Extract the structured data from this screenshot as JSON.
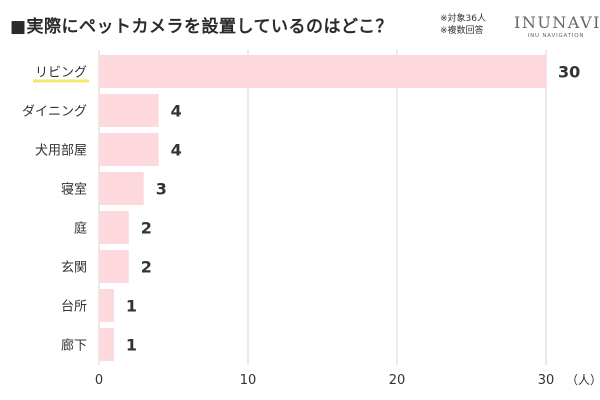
{
  "title": "■実際にペットカメラを設置しているのはどこ？",
  "note": {
    "line1": "※対象36人",
    "line2": "※複数回答"
  },
  "logo": {
    "name": "INUNAVI",
    "tagline": "INU NAVIGATION"
  },
  "colors": {
    "bar": "#fdd9de",
    "grid": "#d6d6d6",
    "highlight_underline": "#f4e96a",
    "text": "#333333"
  },
  "chart_data": {
    "type": "bar",
    "orientation": "horizontal",
    "categories": [
      "リビング",
      "ダイニング",
      "犬用部屋",
      "寝室",
      "庭",
      "玄関",
      "台所",
      "廊下"
    ],
    "values": [
      30,
      4,
      4,
      3,
      2,
      2,
      1,
      1
    ],
    "xlim": [
      0,
      30
    ],
    "xticks": [
      0,
      10,
      20,
      30
    ],
    "unit": "（人）",
    "highlighted_category": "リビング",
    "grid": true
  }
}
